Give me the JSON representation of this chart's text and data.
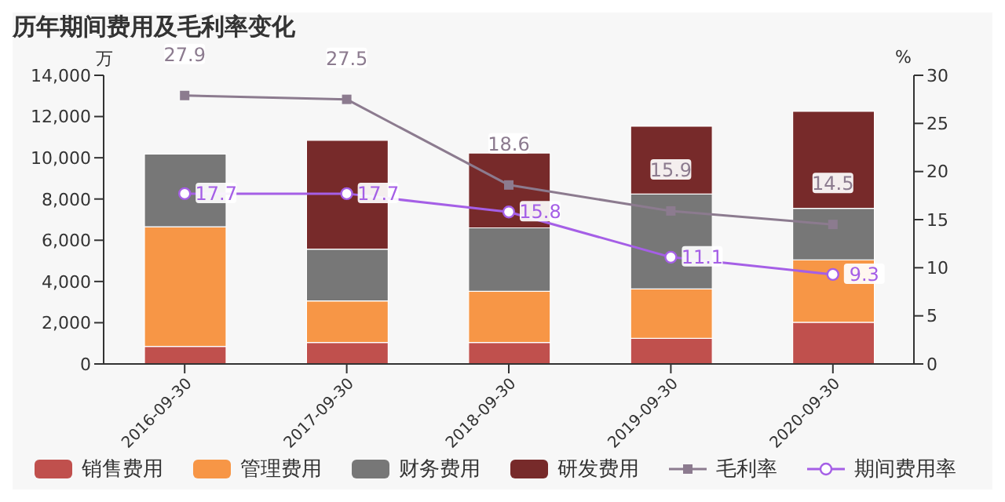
{
  "chart_data": {
    "type": "bar",
    "title": "历年期间费用及毛利率变化",
    "ylabel": "万",
    "y2label": "%",
    "stacked": true,
    "categories": [
      "2016-09-30",
      "2017-09-30",
      "2018-09-30",
      "2019-09-30",
      "2020-09-30"
    ],
    "series": [
      {
        "name": "销售费用",
        "color": "#c0504d",
        "values": [
          850,
          1040,
          1040,
          1240,
          2020
        ]
      },
      {
        "name": "管理费用",
        "color": "#f79646",
        "values": [
          5800,
          2020,
          2480,
          2400,
          3030
        ]
      },
      {
        "name": "财务费用",
        "color": "#777777",
        "values": [
          3530,
          2510,
          3080,
          4600,
          2500
        ]
      },
      {
        "name": "研发费用",
        "color": "#772a2a",
        "values": [
          0,
          5280,
          3630,
          3290,
          4700
        ]
      },
      {
        "name": "毛利率",
        "type": "line",
        "axis": "y2",
        "color": "#8c7b8f",
        "marker": "square",
        "values": [
          27.9,
          27.5,
          18.6,
          15.9,
          14.5
        ],
        "value_labels": [
          "27.9",
          "27.5",
          "18.6",
          "15.9",
          "14.5"
        ]
      },
      {
        "name": "期间费用率",
        "type": "line",
        "axis": "y2",
        "color": "#a55fe6",
        "marker": "circle",
        "values": [
          17.7,
          17.7,
          15.8,
          11.1,
          9.3
        ],
        "value_labels": [
          "17.7",
          "17.7",
          "15.8",
          "11.1",
          "9.3"
        ]
      }
    ],
    "ylim": [
      0,
      14000
    ],
    "yticks": [
      0,
      {
        "value": 2000,
        "label": "2,000"
      },
      {
        "value": 4000,
        "label": "4,000"
      },
      {
        "value": 6000,
        "label": "6,000"
      },
      {
        "value": 8000,
        "label": "8,000"
      },
      {
        "value": 10000,
        "label": "10,000"
      },
      {
        "value": 12000,
        "label": "12,000"
      },
      {
        "value": 14000,
        "label": "14,000"
      }
    ],
    "y2lim": [
      0,
      30
    ],
    "y2ticks": [
      0,
      5,
      10,
      15,
      20,
      25,
      30
    ],
    "legend": "bottom",
    "grid": false
  }
}
